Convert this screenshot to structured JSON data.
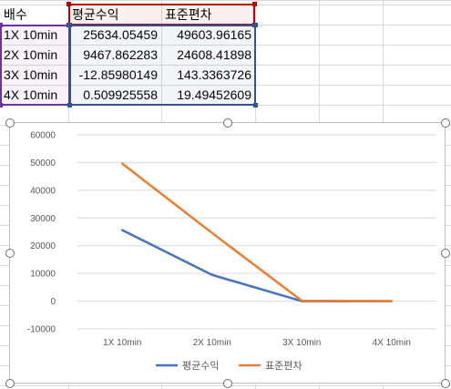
{
  "sheet": {
    "headers": [
      "배수",
      "평균수익",
      "표준편차"
    ],
    "rows": [
      [
        "1X 10min",
        "25634.05459",
        "49603.96165"
      ],
      [
        "2X 10min",
        "9467.862283",
        "24608.41898"
      ],
      [
        "3X 10min",
        "-12.85980149",
        "143.3363726"
      ],
      [
        "4X 10min",
        "0.509925558",
        "19.49452609"
      ]
    ]
  },
  "colors": {
    "series1": "#4472c4",
    "series2": "#ed7d31",
    "range_purple": "#7030a0",
    "range_red": "#c00000",
    "range_blue": "#2e5597"
  },
  "chart_data": {
    "type": "line",
    "categories": [
      "1X 10min",
      "2X 10min",
      "3X 10min",
      "4X 10min"
    ],
    "series": [
      {
        "name": "평균수익",
        "values": [
          25634.05459,
          9467.862283,
          -12.85980149,
          0.509925558
        ]
      },
      {
        "name": "표준편차",
        "values": [
          49603.96165,
          24608.41898,
          143.3363726,
          19.49452609
        ]
      }
    ],
    "ylim": [
      -10000,
      60000
    ],
    "yticks": [
      -10000,
      0,
      10000,
      20000,
      30000,
      40000,
      50000,
      60000
    ],
    "grid": true,
    "legend": "bottom"
  }
}
